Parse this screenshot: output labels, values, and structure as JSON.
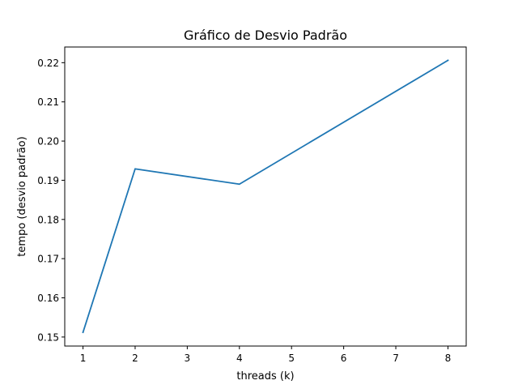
{
  "chart_data": {
    "type": "line",
    "title": "Gráfico de Desvio Padrão",
    "xlabel": "threads (k)",
    "ylabel": "tempo (desvio padrão)",
    "xlim": [
      0.65,
      8.35
    ],
    "ylim": [
      0.1477,
      0.224
    ],
    "xticks": [
      1,
      2,
      3,
      4,
      5,
      6,
      7,
      8
    ],
    "yticks": [
      0.15,
      0.16,
      0.17,
      0.18,
      0.19,
      0.2,
      0.21,
      0.22
    ],
    "ytick_labels": [
      "0.15",
      "0.16",
      "0.17",
      "0.18",
      "0.19",
      "0.20",
      "0.21",
      "0.22"
    ],
    "grid": false,
    "series": [
      {
        "color": "#1f77b4",
        "x": [
          1,
          2,
          4,
          8
        ],
        "y": [
          0.1512,
          0.1929,
          0.189,
          0.2206
        ]
      }
    ]
  }
}
